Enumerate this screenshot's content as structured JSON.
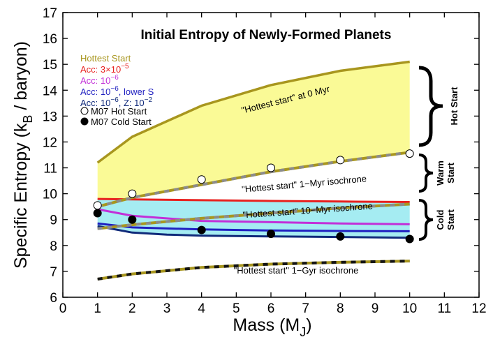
{
  "chart_data": {
    "type": "line",
    "title": "Initial Entropy of Newly-Formed Planets",
    "xlabel_main": "Mass (M",
    "xlabel_sub": "J",
    "xlabel_end": ")",
    "ylabel_main": "Specific Entropy (k",
    "ylabel_sub": "B",
    "ylabel_end": " / baryon)",
    "xlim": [
      0,
      12
    ],
    "ylim": [
      6,
      17
    ],
    "x_ticks": [
      "0",
      "1",
      "2",
      "3",
      "4",
      "5",
      "6",
      "7",
      "8",
      "9",
      "10",
      "11",
      "12"
    ],
    "y_ticks": [
      "6",
      "7",
      "8",
      "9",
      "10",
      "11",
      "12",
      "13",
      "14",
      "15",
      "16",
      "17"
    ],
    "grid": false,
    "colors": {
      "hottest": "#a8961e",
      "acc3e5": "#e8211f",
      "acc1e6": "#c22fd8",
      "lowerS": "#1f1fc0",
      "z1e2": "#102a7a",
      "yellow_fill": "#fafa96",
      "cyan_fill": "#a5ecf2",
      "gray_dash": "#8c8c8c",
      "isochrone_dash": "#141414"
    },
    "legend": {
      "hottest": "Hottest Start",
      "acc3e5_prefix": "Acc: 3×10",
      "acc3e5_exp": "−5",
      "acc1e6_prefix": "Acc: 10",
      "acc1e6_exp": "−6",
      "lowerS_prefix": "Acc: 10",
      "lowerS_exp": "−6",
      "lowerS_suffix": ", lower S",
      "z_prefix": "Acc: 10",
      "z_exp": "−6",
      "z_mid": ", Z: 10",
      "z_exp2": "−2",
      "m07_hot": "M07 Hot Start",
      "m07_cold": "M07 Cold Start"
    },
    "series": [
      {
        "key": "hottest_0myr",
        "x": [
          1,
          2,
          4,
          6,
          8,
          10
        ],
        "y": [
          11.2,
          12.2,
          13.4,
          14.2,
          14.75,
          15.1
        ]
      },
      {
        "key": "hottest_1myr",
        "x": [
          1,
          2,
          4,
          6,
          8,
          10
        ],
        "y": [
          9.5,
          9.85,
          10.35,
          10.85,
          11.25,
          11.6
        ]
      },
      {
        "key": "hottest_10myr",
        "x": [
          1,
          2,
          4,
          6,
          8,
          10
        ],
        "y": [
          8.65,
          8.8,
          9.05,
          9.25,
          9.45,
          9.6
        ]
      },
      {
        "key": "hottest_1gyr",
        "x": [
          1,
          2,
          4,
          6,
          8,
          10
        ],
        "y": [
          6.7,
          6.9,
          7.15,
          7.28,
          7.35,
          7.4
        ]
      },
      {
        "key": "acc3e5",
        "x": [
          1,
          2,
          4,
          6,
          8,
          10
        ],
        "y": [
          9.8,
          9.78,
          9.75,
          9.72,
          9.7,
          9.68
        ]
      },
      {
        "key": "acc1e6",
        "x": [
          1,
          2,
          4,
          6,
          8,
          10
        ],
        "y": [
          9.4,
          9.15,
          8.95,
          8.9,
          8.85,
          8.82
        ]
      },
      {
        "key": "lowerS",
        "x": [
          1,
          2,
          4,
          6,
          8,
          10
        ],
        "y": [
          8.85,
          8.7,
          8.62,
          8.58,
          8.56,
          8.55
        ]
      },
      {
        "key": "z1e2",
        "x": [
          1,
          2,
          3,
          4,
          6,
          8,
          10
        ],
        "y": [
          8.75,
          8.5,
          8.42,
          8.38,
          8.35,
          8.33,
          8.3
        ]
      }
    ],
    "m07_hot": {
      "x": [
        1,
        2,
        4,
        6,
        8,
        10
      ],
      "y": [
        9.55,
        10.0,
        10.55,
        11.0,
        11.3,
        11.55
      ]
    },
    "m07_cold": {
      "x": [
        1,
        2,
        4,
        6,
        8,
        10
      ],
      "y": [
        9.25,
        9.0,
        8.6,
        8.45,
        8.35,
        8.25
      ]
    },
    "annotations": {
      "hot_at_0": "\"Hottest start\" at 0 Myr",
      "iso_1myr": "\"Hottest start\" 1−Myr isochrone",
      "iso_10myr": "\"Hottest start\" 10−Myr isochrone",
      "iso_1gyr": "\"Hottest start\" 1−Gyr isochrone"
    },
    "brackets": {
      "hot_label": "Hot Start",
      "warm_line1": "Warm",
      "warm_line2": "Start",
      "cold_line1": "Cold",
      "cold_line2": "Start"
    }
  }
}
